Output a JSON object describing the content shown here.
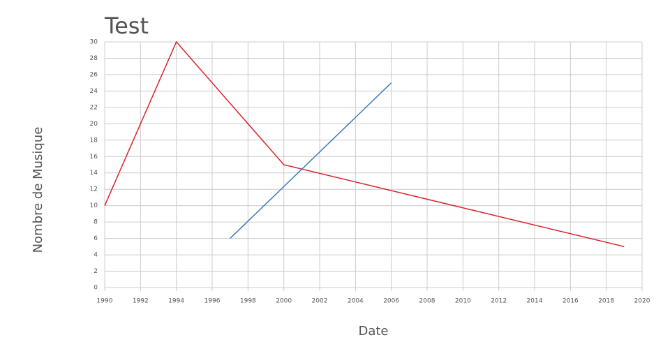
{
  "chart_data": {
    "type": "line",
    "title": "Test",
    "x_label": "Date",
    "y_label": "Nombre de Musique",
    "series": [
      {
        "color": "#d9232d",
        "x": [
          1990,
          1994,
          2000,
          2019
        ],
        "values": [
          10,
          30,
          15,
          5
        ]
      },
      {
        "color": "#3a7bbf",
        "x": [
          1997,
          2006
        ],
        "values": [
          6,
          25
        ]
      }
    ],
    "xlim": [
      1990,
      2020
    ],
    "xticks": [
      1990,
      1992,
      1994,
      1996,
      1998,
      2000,
      2002,
      2004,
      2006,
      2008,
      2010,
      2012,
      2014,
      2016,
      2018,
      2020
    ],
    "ylim": [
      0,
      30
    ],
    "yticks": [
      0,
      2,
      4,
      6,
      8,
      10,
      12,
      14,
      16,
      18,
      20,
      22,
      24,
      26,
      28,
      30
    ],
    "grid": true
  }
}
